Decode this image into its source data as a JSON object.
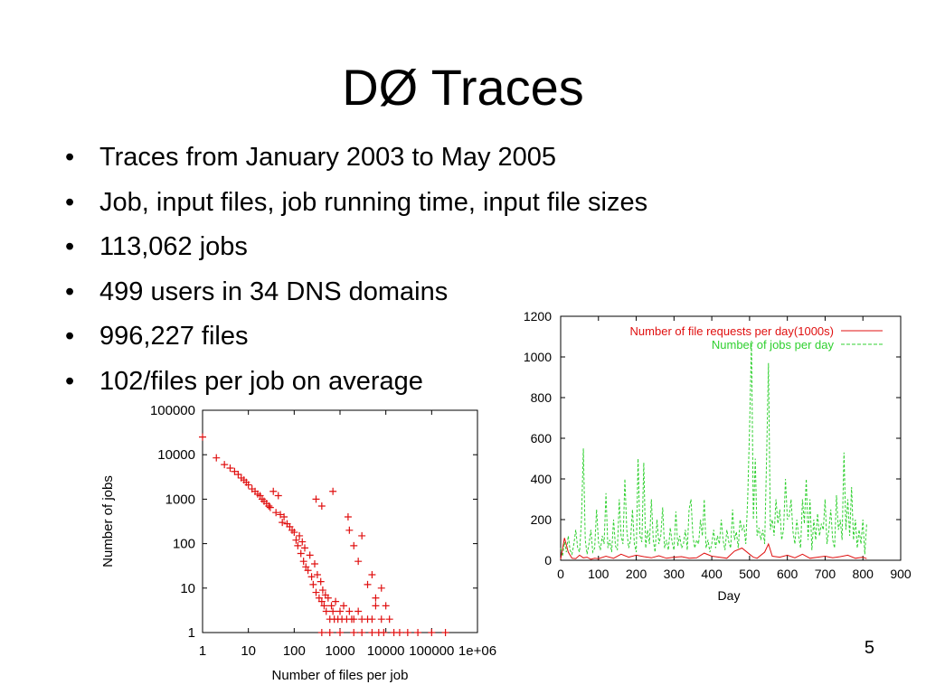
{
  "slide": {
    "title": "DØ Traces",
    "bullet_marker": "•",
    "bullets": [
      "Traces from January 2003 to May 2005",
      "Job, input files, job running time, input file sizes",
      "113,062 jobs",
      "499 users in 34 DNS domains",
      "996,227 files",
      "102/files per job on average"
    ],
    "page_number": "5"
  },
  "chart_data": [
    {
      "type": "scatter",
      "xscale": "log",
      "yscale": "log",
      "xlabel": "Number of files per job",
      "ylabel": "Number of jobs",
      "xticks": [
        "1",
        "10",
        "100",
        "1000",
        "10000",
        "100000",
        "1e+06"
      ],
      "yticks": [
        "1",
        "10",
        "100",
        "1000",
        "10000",
        "100000"
      ],
      "xlim": [
        1,
        1000000
      ],
      "ylim": [
        1,
        100000
      ],
      "marker": "+",
      "color": "#e01010",
      "points": [
        [
          1,
          25000
        ],
        [
          2,
          8500
        ],
        [
          3,
          6000
        ],
        [
          4,
          5000
        ],
        [
          5,
          4200
        ],
        [
          6,
          3600
        ],
        [
          7,
          3000
        ],
        [
          8,
          2700
        ],
        [
          9,
          2400
        ],
        [
          10,
          2100
        ],
        [
          12,
          1700
        ],
        [
          14,
          1500
        ],
        [
          16,
          1300
        ],
        [
          18,
          1200
        ],
        [
          20,
          1000
        ],
        [
          22,
          900
        ],
        [
          25,
          800
        ],
        [
          28,
          700
        ],
        [
          30,
          650
        ],
        [
          35,
          1500
        ],
        [
          40,
          500
        ],
        [
          45,
          1200
        ],
        [
          50,
          450
        ],
        [
          55,
          300
        ],
        [
          60,
          400
        ],
        [
          70,
          280
        ],
        [
          80,
          240
        ],
        [
          90,
          200
        ],
        [
          100,
          180
        ],
        [
          110,
          120
        ],
        [
          120,
          90
        ],
        [
          130,
          150
        ],
        [
          140,
          60
        ],
        [
          150,
          110
        ],
        [
          160,
          40
        ],
        [
          170,
          80
        ],
        [
          180,
          30
        ],
        [
          200,
          25
        ],
        [
          220,
          55
        ],
        [
          240,
          18
        ],
        [
          260,
          12
        ],
        [
          280,
          35
        ],
        [
          300,
          8
        ],
        [
          320,
          20
        ],
        [
          350,
          6
        ],
        [
          380,
          14
        ],
        [
          400,
          5
        ],
        [
          420,
          9
        ],
        [
          450,
          4
        ],
        [
          480,
          7
        ],
        [
          500,
          3
        ],
        [
          550,
          6
        ],
        [
          600,
          2
        ],
        [
          650,
          4
        ],
        [
          700,
          3
        ],
        [
          750,
          2
        ],
        [
          800,
          5
        ],
        [
          900,
          2
        ],
        [
          1000,
          3
        ],
        [
          1100,
          2
        ],
        [
          1200,
          4
        ],
        [
          1400,
          2
        ],
        [
          1600,
          3
        ],
        [
          1800,
          2
        ],
        [
          2000,
          2
        ],
        [
          2500,
          3
        ],
        [
          3000,
          2
        ],
        [
          4000,
          2
        ],
        [
          5000,
          2
        ],
        [
          6000,
          4
        ],
        [
          8000,
          2
        ],
        [
          1500,
          400
        ],
        [
          1600,
          200
        ],
        [
          700,
          1500
        ],
        [
          300,
          1000
        ],
        [
          400,
          700
        ],
        [
          3000,
          150
        ],
        [
          2000,
          90
        ],
        [
          5000,
          20
        ],
        [
          8000,
          10
        ],
        [
          10000,
          4
        ],
        [
          12000,
          2
        ],
        [
          2500,
          40
        ],
        [
          4000,
          12
        ],
        [
          6000,
          6
        ],
        [
          15000,
          1
        ],
        [
          20000,
          1
        ],
        [
          30000,
          1
        ],
        [
          50000,
          1
        ],
        [
          100000,
          1
        ],
        [
          200000,
          1
        ],
        [
          400,
          1
        ],
        [
          600,
          1
        ],
        [
          1000,
          1
        ],
        [
          2000,
          1
        ],
        [
          3000,
          1
        ],
        [
          5000,
          1
        ],
        [
          7000,
          1
        ],
        [
          9000,
          1
        ]
      ]
    },
    {
      "type": "line",
      "xlabel": "Day",
      "ylabel": "",
      "xlim": [
        0,
        900
      ],
      "ylim": [
        0,
        1200
      ],
      "xticks": [
        "0",
        "100",
        "200",
        "300",
        "400",
        "500",
        "600",
        "700",
        "800",
        "900"
      ],
      "yticks": [
        "0",
        "200",
        "400",
        "600",
        "800",
        "1000",
        "1200"
      ],
      "legend_position": "top-right",
      "series": [
        {
          "name": "Number of file requests per day(1000s)",
          "color": "#e01010",
          "dash": "solid",
          "x": [
            0,
            10,
            20,
            30,
            40,
            50,
            60,
            70,
            80,
            90,
            100,
            120,
            140,
            160,
            180,
            200,
            220,
            240,
            260,
            280,
            300,
            320,
            340,
            360,
            380,
            400,
            420,
            440,
            460,
            480,
            500,
            510,
            520,
            540,
            550,
            560,
            580,
            600,
            620,
            640,
            660,
            680,
            700,
            720,
            740,
            760,
            780,
            800,
            810
          ],
          "y": [
            5,
            110,
            40,
            10,
            8,
            25,
            12,
            15,
            5,
            10,
            8,
            20,
            10,
            30,
            15,
            25,
            18,
            12,
            22,
            10,
            15,
            18,
            10,
            12,
            35,
            20,
            15,
            10,
            45,
            60,
            30,
            15,
            10,
            40,
            80,
            20,
            15,
            25,
            12,
            30,
            10,
            15,
            20,
            12,
            18,
            25,
            10,
            15,
            8
          ]
        },
        {
          "name": "Number of jobs per day",
          "color": "#30d030",
          "dash": "dashed",
          "x": [
            0,
            5,
            10,
            15,
            20,
            25,
            30,
            35,
            40,
            45,
            50,
            55,
            60,
            65,
            70,
            75,
            80,
            85,
            90,
            95,
            100,
            105,
            110,
            115,
            120,
            125,
            130,
            135,
            140,
            145,
            150,
            155,
            160,
            165,
            170,
            175,
            180,
            185,
            190,
            195,
            200,
            205,
            210,
            215,
            220,
            225,
            230,
            235,
            240,
            245,
            250,
            255,
            260,
            265,
            270,
            275,
            280,
            285,
            290,
            295,
            300,
            305,
            310,
            315,
            320,
            325,
            330,
            335,
            340,
            345,
            350,
            355,
            360,
            365,
            370,
            375,
            380,
            385,
            390,
            395,
            400,
            405,
            410,
            415,
            420,
            425,
            430,
            435,
            440,
            445,
            450,
            455,
            460,
            465,
            470,
            475,
            480,
            485,
            490,
            495,
            500,
            505,
            510,
            515,
            520,
            525,
            530,
            535,
            540,
            545,
            550,
            555,
            560,
            565,
            570,
            575,
            580,
            585,
            590,
            595,
            600,
            605,
            610,
            615,
            620,
            625,
            630,
            635,
            640,
            645,
            650,
            655,
            660,
            665,
            670,
            675,
            680,
            685,
            690,
            695,
            700,
            705,
            710,
            715,
            720,
            725,
            730,
            735,
            740,
            745,
            750,
            755,
            760,
            765,
            770,
            775,
            780,
            785,
            790,
            795,
            800,
            805,
            810
          ],
          "y": [
            60,
            20,
            90,
            40,
            120,
            50,
            30,
            80,
            150,
            60,
            40,
            200,
            550,
            100,
            30,
            80,
            150,
            40,
            60,
            250,
            90,
            50,
            120,
            80,
            330,
            60,
            100,
            40,
            200,
            70,
            50,
            300,
            120,
            80,
            400,
            150,
            60,
            100,
            250,
            80,
            40,
            500,
            120,
            90,
            480,
            60,
            150,
            80,
            300,
            100,
            40,
            200,
            80,
            120,
            260,
            60,
            100,
            50,
            160,
            90,
            50,
            240,
            70,
            120,
            60,
            80,
            150,
            50,
            250,
            300,
            120,
            60,
            100,
            80,
            200,
            120,
            300,
            60,
            100,
            40,
            80,
            150,
            60,
            120,
            80,
            200,
            100,
            50,
            150,
            90,
            60,
            250,
            100,
            140,
            60,
            200,
            150,
            170,
            80,
            300,
            650,
            1080,
            200,
            500,
            120,
            160,
            100,
            150,
            80,
            500,
            970,
            150,
            200,
            120,
            300,
            180,
            250,
            100,
            150,
            400,
            200,
            220,
            300,
            140,
            80,
            200,
            120,
            60,
            300,
            180,
            400,
            100,
            300,
            50,
            200,
            100,
            230,
            120,
            180,
            150,
            300,
            80,
            150,
            250,
            100,
            60,
            320,
            150,
            200,
            100,
            530,
            150,
            300,
            120,
            360,
            100,
            200,
            60,
            150,
            80,
            200,
            30,
            180
          ]
        }
      ]
    }
  ]
}
